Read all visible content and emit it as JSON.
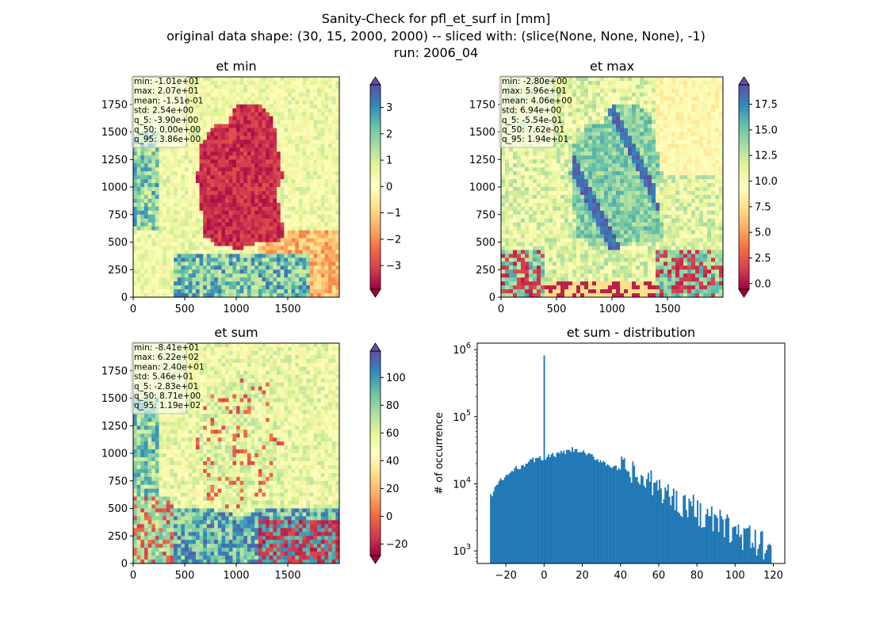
{
  "figure": {
    "suptitle_lines": [
      "Sanity-Check for pfl_et_surf in [mm]",
      "original data shape: (30, 15, 2000, 2000) -- sliced with: (slice(None, None, None), -1)",
      "run: 2006_04"
    ]
  },
  "chart_data": [
    {
      "type": "heatmap",
      "title": "et min",
      "colormap": "Spectral",
      "x_ticks": [
        0,
        500,
        1000,
        1500
      ],
      "y_ticks": [
        0,
        250,
        500,
        750,
        1000,
        1250,
        1500,
        1750
      ],
      "xlim": [
        0,
        2000
      ],
      "ylim": [
        0,
        2000
      ],
      "colorbar": {
        "range": [
          -3.9,
          3.86
        ],
        "ticks": [
          -3,
          -2,
          -1,
          0,
          1,
          2,
          3
        ],
        "tick_labels": [
          "−3",
          "−2",
          "−1",
          "0",
          "1",
          "2",
          "3"
        ],
        "extend": "both"
      },
      "stats": [
        "min: -1.01e+01",
        "max: 2.07e+01",
        "mean: -1.51e-01",
        "std: 2.54e+00",
        "q_5: -3.90e+00",
        "q_50: 0.00e+00",
        "q_95: 3.86e+00"
      ]
    },
    {
      "type": "heatmap",
      "title": "et max",
      "colormap": "Spectral",
      "x_ticks": [
        0,
        500,
        1000,
        1500
      ],
      "y_ticks": [
        0,
        250,
        500,
        750,
        1000,
        1250,
        1500,
        1750
      ],
      "xlim": [
        0,
        2000
      ],
      "ylim": [
        0,
        2000
      ],
      "colorbar": {
        "range": [
          -0.554,
          19.4
        ],
        "ticks": [
          0,
          2.5,
          5,
          7.5,
          10,
          12.5,
          15,
          17.5
        ],
        "tick_labels": [
          "0.0",
          "2.5",
          "5.0",
          "7.5",
          "10.0",
          "12.5",
          "15.0",
          "17.5"
        ],
        "extend": "both"
      },
      "stats": [
        "min: -2.80e+00",
        "max: 5.96e+01",
        "mean: 4.06e+00",
        "std: 6.94e+00",
        "q_5: -5.54e-01",
        "q_50: 7.62e-01",
        "q_95: 1.94e+01"
      ]
    },
    {
      "type": "heatmap",
      "title": "et sum",
      "colormap": "Spectral",
      "x_ticks": [
        0,
        500,
        1000,
        1500
      ],
      "y_ticks": [
        0,
        250,
        500,
        750,
        1000,
        1250,
        1500,
        1750
      ],
      "xlim": [
        0,
        2000
      ],
      "ylim": [
        0,
        2000
      ],
      "colorbar": {
        "range": [
          -28.3,
          119
        ],
        "ticks": [
          -20,
          0,
          20,
          40,
          60,
          80,
          100
        ],
        "tick_labels": [
          "−20",
          "0",
          "20",
          "40",
          "60",
          "80",
          "100"
        ],
        "extend": "both"
      },
      "stats": [
        "min: -8.41e+01",
        "max: 6.22e+02",
        "mean: 2.40e+01",
        "std: 5.46e+01",
        "q_5: -2.83e+01",
        "q_50: 8.71e+00",
        "q_95: 1.19e+02"
      ]
    },
    {
      "type": "bar",
      "title": "et sum - distribution",
      "ylabel": "# of occurrence",
      "xlabel": "",
      "yscale": "log",
      "xlim": [
        -35,
        126
      ],
      "ylim": [
        650,
        1250000
      ],
      "x_ticks": [
        -20,
        0,
        20,
        40,
        60,
        80,
        100,
        120
      ],
      "x_tick_labels": [
        "−20",
        "0",
        "20",
        "40",
        "60",
        "80",
        "100",
        "120"
      ],
      "y_ticks": [
        1000,
        10000,
        100000,
        1000000
      ],
      "y_tick_labels": [
        [
          "10",
          "3"
        ],
        [
          "10",
          "4"
        ],
        [
          "10",
          "5"
        ],
        [
          "10",
          "6"
        ]
      ],
      "bin_range": [
        -28.3,
        119
      ],
      "bin_count": 200,
      "bar_color": "#1f77b4",
      "spike": {
        "x": 0,
        "count": 820000
      },
      "envelope": [
        [
          -28.3,
          6200
        ],
        [
          -25,
          9500
        ],
        [
          -20,
          13000
        ],
        [
          -15,
          16500
        ],
        [
          -10,
          20000
        ],
        [
          -5,
          23000
        ],
        [
          0,
          24500
        ],
        [
          5,
          26500
        ],
        [
          10,
          29000
        ],
        [
          15,
          32000
        ],
        [
          20,
          29500
        ],
        [
          25,
          25500
        ],
        [
          30,
          22000
        ],
        [
          35,
          18500
        ],
        [
          40,
          16000
        ],
        [
          45,
          14500
        ],
        [
          50,
          11500
        ],
        [
          55,
          10000
        ],
        [
          60,
          8800
        ],
        [
          65,
          6800
        ],
        [
          70,
          5500
        ],
        [
          75,
          4800
        ],
        [
          80,
          4000
        ],
        [
          85,
          3200
        ],
        [
          90,
          2700
        ],
        [
          95,
          2300
        ],
        [
          100,
          1900
        ],
        [
          105,
          1600
        ],
        [
          110,
          1350
        ],
        [
          115,
          1200
        ],
        [
          119,
          1300
        ]
      ]
    }
  ]
}
